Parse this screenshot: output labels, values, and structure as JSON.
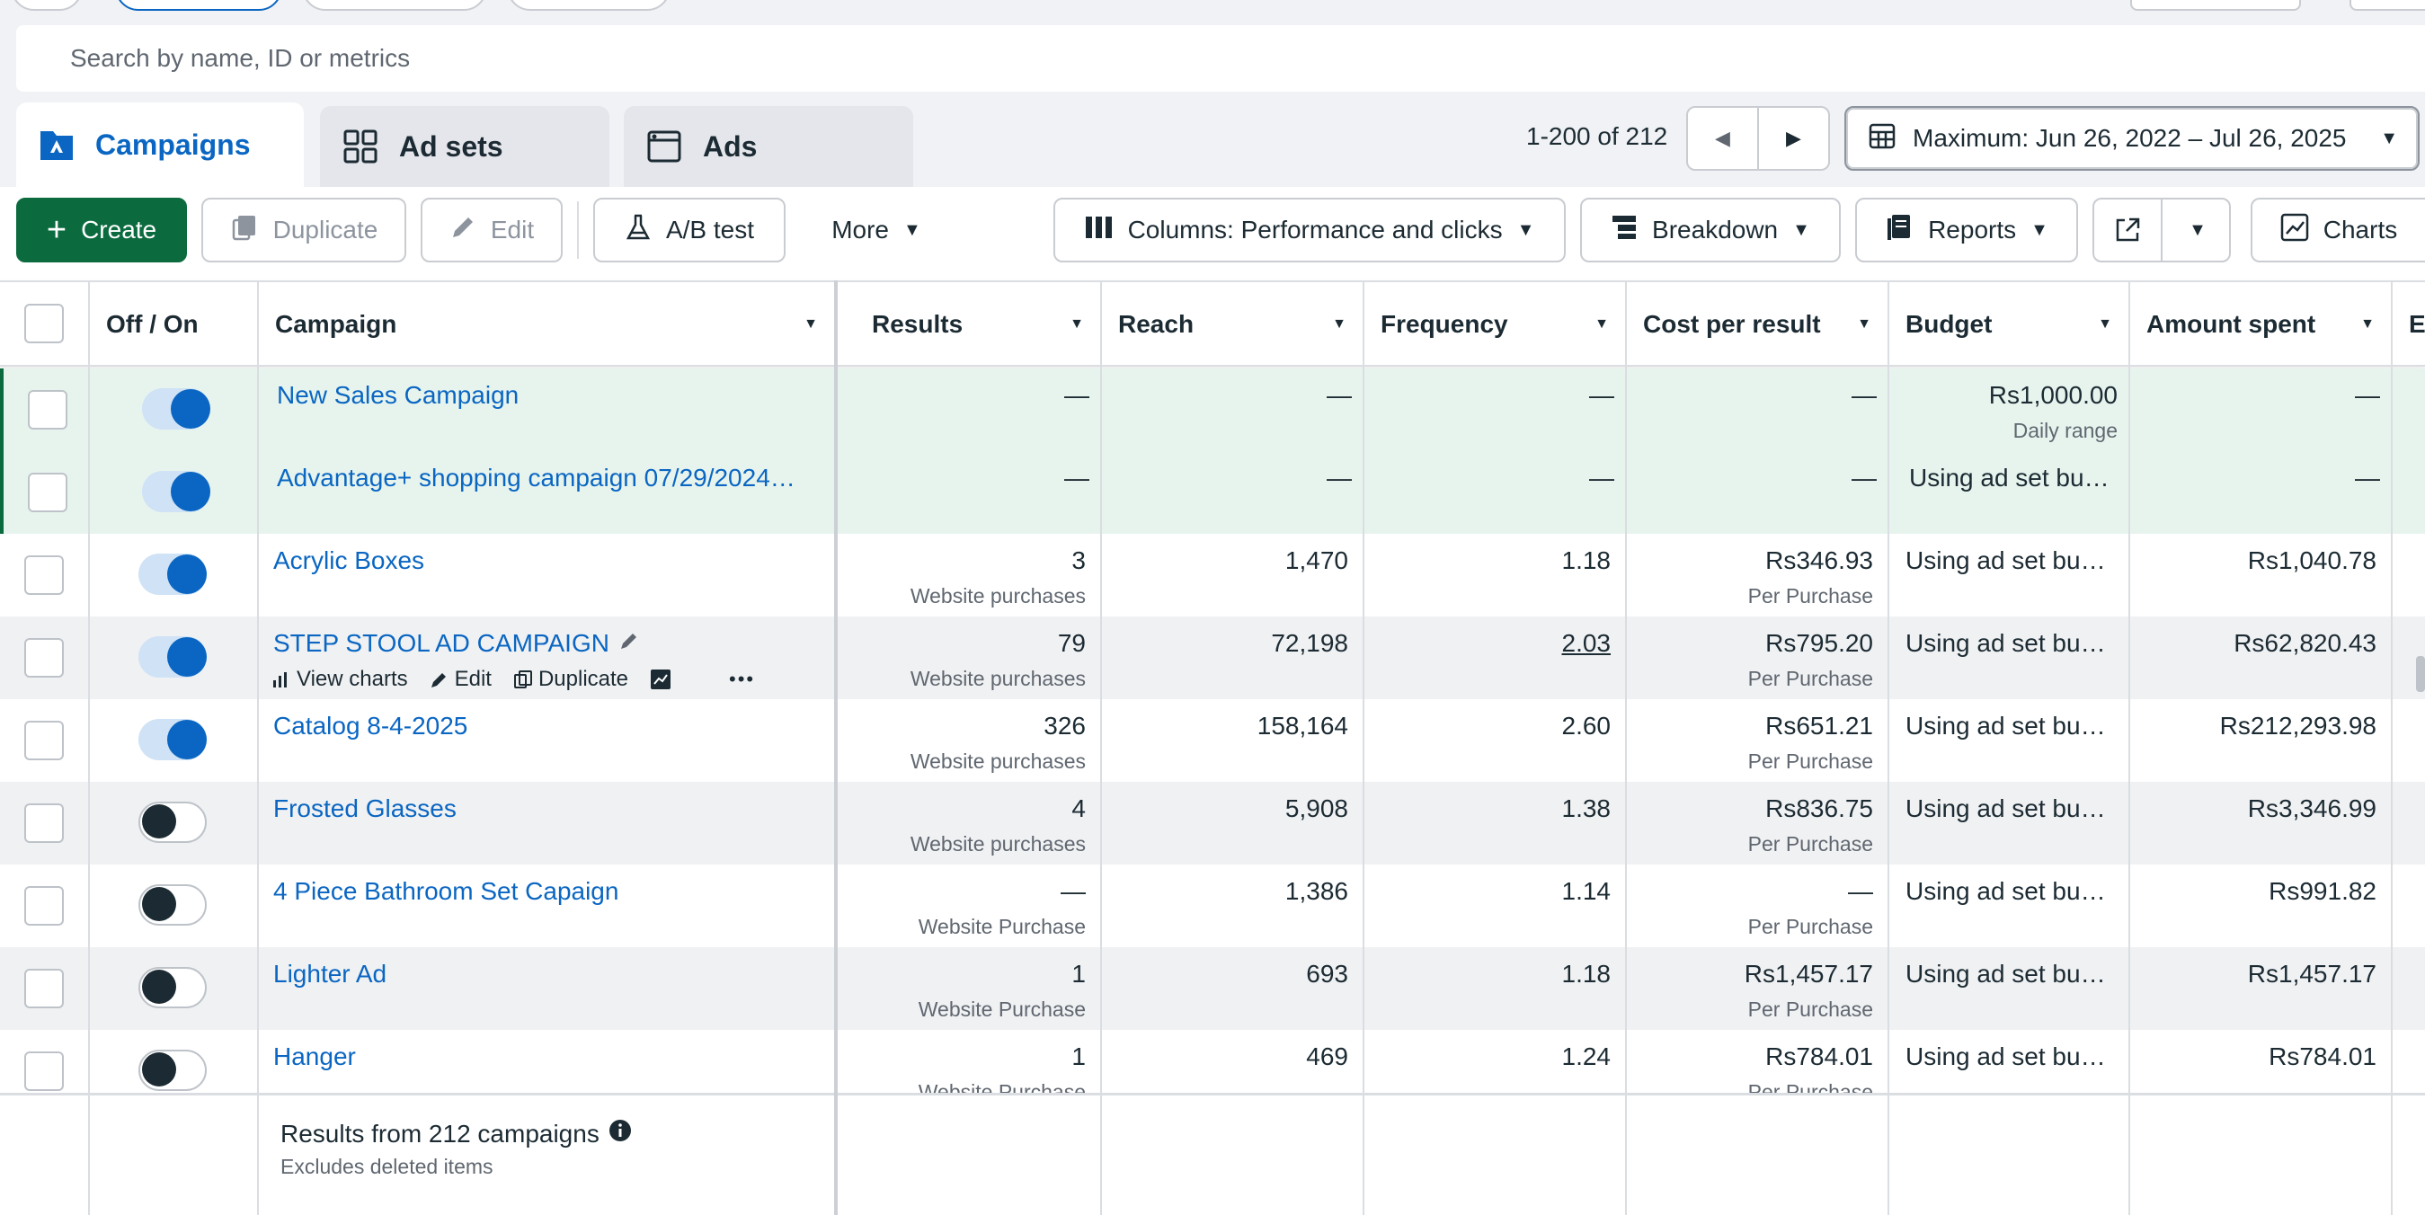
{
  "search": {
    "placeholder": "Search by name, ID or metrics"
  },
  "tabs": [
    {
      "label": "Campaigns",
      "active": true,
      "icon": "campaign-folder-icon"
    },
    {
      "label": "Ad sets",
      "active": false,
      "icon": "grid-icon"
    },
    {
      "label": "Ads",
      "active": false,
      "icon": "ad-window-icon"
    }
  ],
  "pagination": {
    "label": "1-200 of 212"
  },
  "date_range": {
    "label": "Maximum: Jun 26, 2022 – Jul 26, 2025"
  },
  "toolbar": {
    "create": "Create",
    "duplicate": "Duplicate",
    "edit": "Edit",
    "ab_test": "A/B test",
    "more": "More",
    "columns": "Columns: Performance and clicks",
    "breakdown": "Breakdown",
    "reports": "Reports",
    "charts": "Charts"
  },
  "columns": {
    "off_on": "Off / On",
    "campaign": "Campaign",
    "results": "Results",
    "reach": "Reach",
    "frequency": "Frequency",
    "cost_per_result": "Cost per result",
    "budget": "Budget",
    "amount_spent": "Amount spent",
    "next": "E"
  },
  "rows": [
    {
      "name": "New Sales Campaign",
      "on": true,
      "results": "—",
      "results_sub": "",
      "reach": "—",
      "frequency": "—",
      "cpr": "—",
      "cpr_sub": "",
      "budget": "Rs1,000.00",
      "budget_sub": "Daily range",
      "spent": "—"
    },
    {
      "name": "Advantage+ shopping campaign 07/29/2024…",
      "on": true,
      "results": "—",
      "results_sub": "",
      "reach": "—",
      "frequency": "—",
      "cpr": "—",
      "cpr_sub": "",
      "budget": "Using ad set bu…",
      "budget_sub": "",
      "spent": "—"
    },
    {
      "name": "Acrylic Boxes",
      "on": true,
      "results": "3",
      "results_sub": "Website purchases",
      "reach": "1,470",
      "frequency": "1.18",
      "cpr": "Rs346.93",
      "cpr_sub": "Per Purchase",
      "budget": "Using ad set bu…",
      "budget_sub": "",
      "spent": "Rs1,040.78"
    },
    {
      "name": "STEP STOOL AD CAMPAIGN",
      "on": true,
      "results": "79",
      "results_sub": "Website purchases",
      "reach": "72,198",
      "frequency": "2.03",
      "cpr": "Rs795.20",
      "cpr_sub": "Per Purchase",
      "budget": "Using ad set bu…",
      "budget_sub": "",
      "spent": "Rs62,820.43"
    },
    {
      "name": "Catalog 8-4-2025",
      "on": true,
      "results": "326",
      "results_sub": "Website purchases",
      "reach": "158,164",
      "frequency": "2.60",
      "cpr": "Rs651.21",
      "cpr_sub": "Per Purchase",
      "budget": "Using ad set bu…",
      "budget_sub": "",
      "spent": "Rs212,293.98"
    },
    {
      "name": "Frosted Glasses",
      "on": false,
      "results": "4",
      "results_sub": "Website purchases",
      "reach": "5,908",
      "frequency": "1.38",
      "cpr": "Rs836.75",
      "cpr_sub": "Per Purchase",
      "budget": "Using ad set bu…",
      "budget_sub": "",
      "spent": "Rs3,346.99"
    },
    {
      "name": "4 Piece Bathroom Set Capaign",
      "on": false,
      "results": "—",
      "results_sub": "Website Purchase",
      "reach": "1,386",
      "frequency": "1.14",
      "cpr": "—",
      "cpr_sub": "Per Purchase",
      "budget": "Using ad set bu…",
      "budget_sub": "",
      "spent": "Rs991.82"
    },
    {
      "name": "Lighter Ad",
      "on": false,
      "results": "1",
      "results_sub": "Website Purchase",
      "reach": "693",
      "frequency": "1.18",
      "cpr": "Rs1,457.17",
      "cpr_sub": "Per Purchase",
      "budget": "Using ad set bu…",
      "budget_sub": "",
      "spent": "Rs1,457.17"
    },
    {
      "name": "Hanger",
      "on": false,
      "results": "1",
      "results_sub": "Website Purchase",
      "reach": "469",
      "frequency": "1.24",
      "cpr": "Rs784.01",
      "cpr_sub": "Per Purchase",
      "budget": "Using ad set bu…",
      "budget_sub": "",
      "spent": "Rs784.01"
    }
  ],
  "row_actions": {
    "view_charts": "View charts",
    "edit": "Edit",
    "duplicate": "Duplicate",
    "more": "•••"
  },
  "footer": {
    "title": "Results from 212 campaigns",
    "subtitle": "Excludes deleted items"
  },
  "colors": {
    "accent": "#0a66c2",
    "create_green": "#0b6b3f",
    "selected_row": "#e7f4ee"
  }
}
